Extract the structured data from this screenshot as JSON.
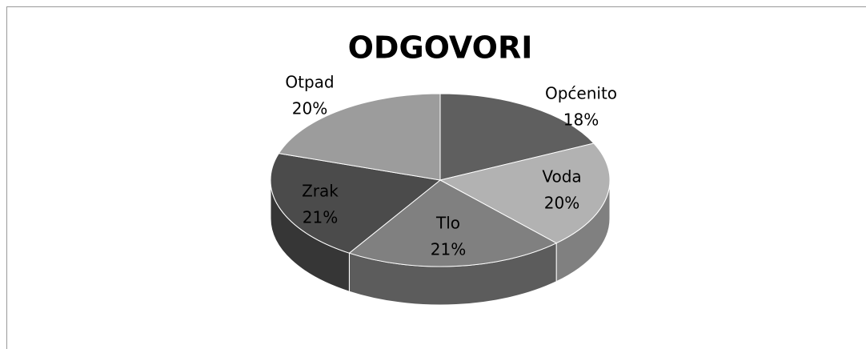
{
  "chart_data": {
    "type": "pie",
    "title": "ODGOVORI",
    "categories": [
      "Općenito",
      "Voda",
      "Tlo",
      "Zrak",
      "Otpad"
    ],
    "values": [
      18,
      20,
      21,
      21,
      20
    ],
    "value_labels": [
      "18%",
      "20%",
      "21%",
      "21%",
      "20%"
    ],
    "colors": [
      "#5f5f5f",
      "#b2b2b2",
      "#808080",
      "#4b4b4b",
      "#9c9c9c"
    ]
  }
}
